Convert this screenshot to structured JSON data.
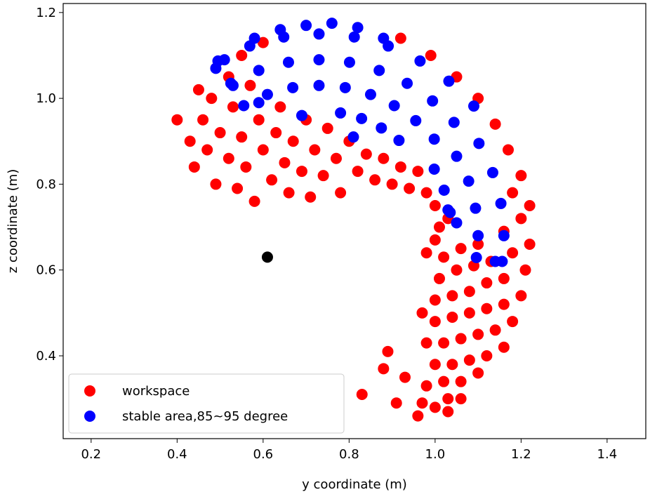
{
  "chart_data": {
    "type": "scatter",
    "xlabel": "y coordinate (m)",
    "ylabel": "z coordinate (m)",
    "xlim": [
      0.135,
      1.49
    ],
    "ylim": [
      0.207,
      1.221
    ],
    "xticks": [
      0.2,
      0.4,
      0.6,
      0.8,
      {
        "value": 1,
        "label": "1.0"
      },
      1.2,
      1.4
    ],
    "yticks": [
      0.4,
      0.6,
      0.8,
      {
        "value": 1,
        "label": "1.0"
      },
      1.2
    ],
    "grid": false,
    "legend": "lower left",
    "series": [
      {
        "name": "workspace",
        "color": "#ff0000",
        "x": [
          1.0,
          1.03,
          1.06,
          0.98,
          1.02,
          1.06,
          1.1,
          1.0,
          1.04,
          1.08,
          1.12,
          1.16,
          0.98,
          1.02,
          1.06,
          1.1,
          1.14,
          1.18,
          1.0,
          1.04,
          1.08,
          1.12,
          1.16,
          1.2,
          1.0,
          1.04,
          1.08,
          1.12,
          1.16,
          1.21,
          1.01,
          1.05,
          1.09,
          1.13,
          1.18,
          1.22,
          1.02,
          1.06,
          1.1,
          1.16,
          1.2,
          1.22,
          1.18,
          1.2,
          1.17,
          1.14,
          1.1,
          1.05,
          0.99,
          0.92,
          0.83,
          0.88,
          0.89,
          0.91,
          0.93,
          0.96,
          0.97,
          0.97,
          1.03,
          0.98,
          1.0,
          1.01,
          1.03,
          0.4,
          0.43,
          0.44,
          0.46,
          0.47,
          0.48,
          0.49,
          0.5,
          0.52,
          0.53,
          0.54,
          0.55,
          0.56,
          0.57,
          0.58,
          0.59,
          0.6,
          0.62,
          0.63,
          0.64,
          0.65,
          0.66,
          0.67,
          0.69,
          0.7,
          0.71,
          0.72,
          0.74,
          0.75,
          0.77,
          0.78,
          0.8,
          0.82,
          0.84,
          0.86,
          0.88,
          0.9,
          0.92,
          0.94,
          0.96,
          0.98,
          1.0,
          0.55,
          0.6,
          0.52,
          0.45
        ],
        "y": [
          0.28,
          0.3,
          0.3,
          0.33,
          0.34,
          0.34,
          0.36,
          0.38,
          0.38,
          0.39,
          0.4,
          0.42,
          0.43,
          0.43,
          0.44,
          0.45,
          0.46,
          0.48,
          0.48,
          0.49,
          0.5,
          0.51,
          0.52,
          0.54,
          0.53,
          0.54,
          0.55,
          0.57,
          0.58,
          0.6,
          0.58,
          0.6,
          0.61,
          0.62,
          0.64,
          0.66,
          0.63,
          0.65,
          0.66,
          0.69,
          0.72,
          0.75,
          0.78,
          0.82,
          0.88,
          0.94,
          1.0,
          1.05,
          1.1,
          1.14,
          0.31,
          0.37,
          0.41,
          0.29,
          0.35,
          0.26,
          0.5,
          0.29,
          0.27,
          0.64,
          0.67,
          0.7,
          0.72,
          0.95,
          0.9,
          0.84,
          0.95,
          0.88,
          1.0,
          0.8,
          0.92,
          0.86,
          0.98,
          0.79,
          0.91,
          0.84,
          1.03,
          0.76,
          0.95,
          0.88,
          0.81,
          0.92,
          0.98,
          0.85,
          0.78,
          0.9,
          0.83,
          0.95,
          0.77,
          0.88,
          0.82,
          0.93,
          0.86,
          0.78,
          0.9,
          0.83,
          0.87,
          0.81,
          0.86,
          0.8,
          0.84,
          0.79,
          0.83,
          0.78,
          0.75,
          1.1,
          1.13,
          1.05,
          1.02
        ]
      },
      {
        "name": "stable area,85~95 degree",
        "color": "#0000ff",
        "x": [
          0.495,
          0.569,
          0.648,
          0.73,
          0.812,
          0.891,
          0.965,
          1.032,
          1.09,
          0.525,
          0.59,
          0.659,
          0.73,
          0.801,
          0.87,
          0.935,
          0.994,
          1.044,
          0.555,
          0.61,
          0.669,
          0.73,
          0.791,
          0.85,
          0.905,
          0.955,
          0.998,
          0.78,
          0.829,
          0.875,
          0.916,
          1.102,
          1.134,
          1.153,
          1.16,
          1.156,
          1.05,
          1.078,
          1.094,
          1.1,
          1.096,
          0.998,
          1.021,
          1.035,
          0.7,
          0.76,
          0.82,
          0.64,
          0.58,
          0.88,
          0.49,
          0.51,
          0.53,
          0.59,
          0.69,
          0.81,
          1.03,
          1.05,
          1.14
        ],
        "y": [
          1.087,
          1.122,
          1.143,
          1.15,
          1.143,
          1.122,
          1.087,
          1.04,
          0.982,
          1.035,
          1.065,
          1.084,
          1.09,
          1.084,
          1.065,
          1.035,
          0.994,
          0.944,
          0.983,
          1.009,
          1.025,
          1.03,
          1.025,
          1.009,
          0.983,
          0.948,
          0.905,
          0.966,
          0.953,
          0.931,
          0.902,
          0.895,
          0.827,
          0.755,
          0.68,
          0.62,
          0.865,
          0.807,
          0.744,
          0.68,
          0.629,
          0.835,
          0.786,
          0.734,
          1.17,
          1.175,
          1.165,
          1.16,
          1.14,
          1.14,
          1.07,
          1.09,
          1.03,
          0.99,
          0.96,
          0.91,
          0.74,
          0.71,
          0.62
        ]
      },
      {
        "color": "#000000",
        "x": [
          0.61
        ],
        "y": [
          0.63
        ]
      }
    ]
  }
}
